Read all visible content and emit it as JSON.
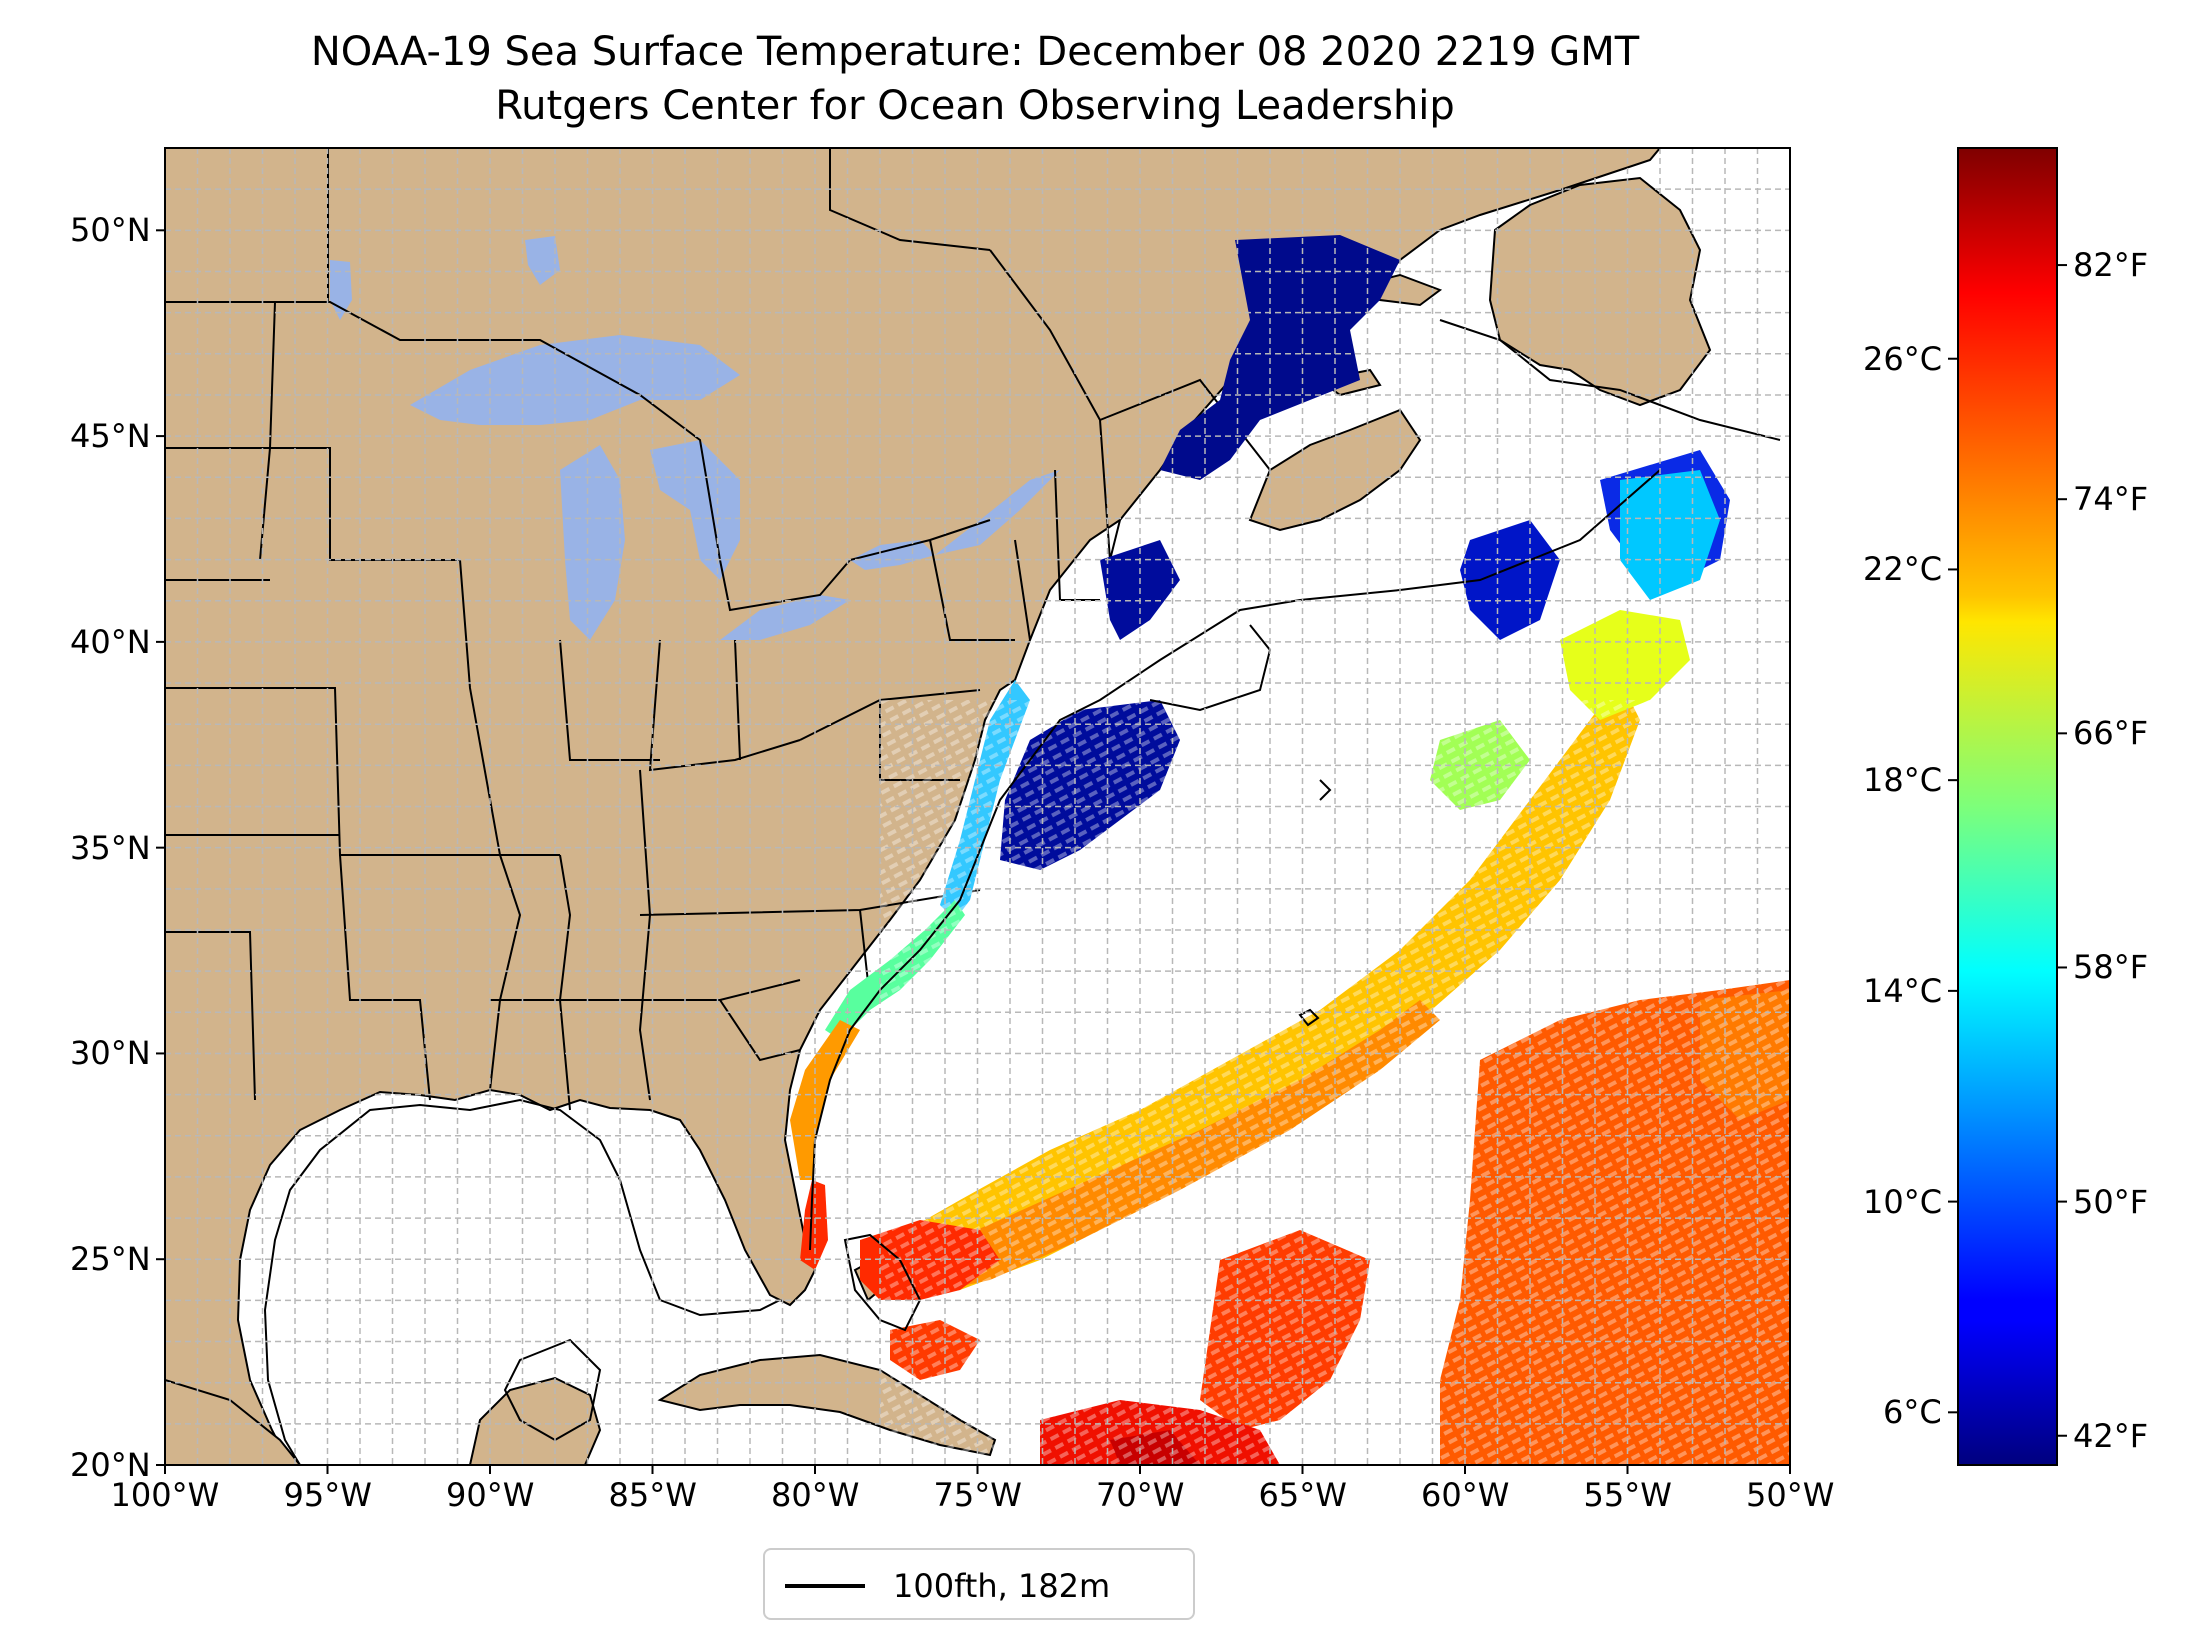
{
  "title": {
    "line1": "NOAA-19 Sea Surface Temperature: December 08 2020 2219 GMT",
    "line2": "Rutgers Center for Ocean Observing Leadership"
  },
  "map": {
    "extent": {
      "lon": [
        -100,
        -50
      ],
      "lat": [
        20,
        52
      ]
    },
    "lat_ticks": [
      {
        "value": 20,
        "label": "20°N"
      },
      {
        "value": 25,
        "label": "25°N"
      },
      {
        "value": 30,
        "label": "30°N"
      },
      {
        "value": 35,
        "label": "35°N"
      },
      {
        "value": 40,
        "label": "40°N"
      },
      {
        "value": 45,
        "label": "45°N"
      },
      {
        "value": 50,
        "label": "50°N"
      }
    ],
    "lon_ticks": [
      {
        "value": -100,
        "label": "100°W"
      },
      {
        "value": -95,
        "label": "95°W"
      },
      {
        "value": -90,
        "label": "90°W"
      },
      {
        "value": -85,
        "label": "85°W"
      },
      {
        "value": -80,
        "label": "80°W"
      },
      {
        "value": -75,
        "label": "75°W"
      },
      {
        "value": -70,
        "label": "70°W"
      },
      {
        "value": -65,
        "label": "65°W"
      },
      {
        "value": -60,
        "label": "60°W"
      },
      {
        "value": -55,
        "label": "55°W"
      },
      {
        "value": -50,
        "label": "50°W"
      }
    ],
    "colors": {
      "land": "#d2b48c",
      "lakes": "#99b3e6",
      "ocean": "#ffffff",
      "grid": "#b8b8b8"
    }
  },
  "colorbar": {
    "colormap": "jet",
    "celsius_range": [
      5,
      30
    ],
    "celsius_ticks": [
      {
        "value": 6,
        "label": "6°C"
      },
      {
        "value": 10,
        "label": "10°C"
      },
      {
        "value": 14,
        "label": "14°C"
      },
      {
        "value": 18,
        "label": "18°C"
      },
      {
        "value": 22,
        "label": "22°C"
      },
      {
        "value": 26,
        "label": "26°C"
      }
    ],
    "fahrenheit_ticks": [
      {
        "value": 42,
        "label": "42°F"
      },
      {
        "value": 50,
        "label": "50°F"
      },
      {
        "value": 58,
        "label": "58°F"
      },
      {
        "value": 66,
        "label": "66°F"
      },
      {
        "value": 74,
        "label": "74°F"
      },
      {
        "value": 82,
        "label": "82°F"
      }
    ]
  },
  "legend": {
    "label": "100fth, 182m",
    "line_color": "#000000"
  }
}
